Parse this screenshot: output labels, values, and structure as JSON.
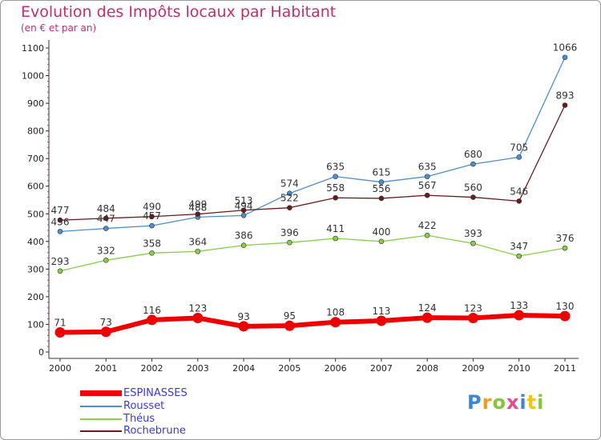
{
  "title": "Evolution des Impôts locaux par Habitant",
  "subtitle": "(en € et par an)",
  "logo_text": "Proxiti",
  "chart_data": {
    "type": "line",
    "x": [
      "2000",
      "2001",
      "2002",
      "2003",
      "2004",
      "2005",
      "2006",
      "2007",
      "2008",
      "2009",
      "2010",
      "2011"
    ],
    "ylim": [
      0,
      1100
    ],
    "yticks": [
      0,
      100,
      200,
      300,
      400,
      500,
      600,
      700,
      800,
      900,
      1000,
      1100
    ],
    "grid": false,
    "legend_position": "bottom-left",
    "series": [
      {
        "name": "ESPINASSES",
        "color": "#ee0000",
        "values": [
          71,
          73,
          116,
          123,
          93,
          95,
          108,
          113,
          124,
          123,
          133,
          130
        ]
      },
      {
        "name": "Rousset",
        "color": "#4a8fd0",
        "values": [
          436,
          447,
          457,
          488,
          494,
          574,
          635,
          615,
          635,
          680,
          705,
          1066
        ]
      },
      {
        "name": "Théus",
        "color": "#86d046",
        "values": [
          293,
          332,
          358,
          364,
          386,
          396,
          411,
          400,
          422,
          393,
          347,
          376
        ]
      },
      {
        "name": "Rochebrune",
        "color": "#6b1a1a",
        "values": [
          477,
          484,
          490,
          499,
          513,
          522,
          558,
          556,
          567,
          560,
          546,
          893
        ]
      }
    ]
  }
}
